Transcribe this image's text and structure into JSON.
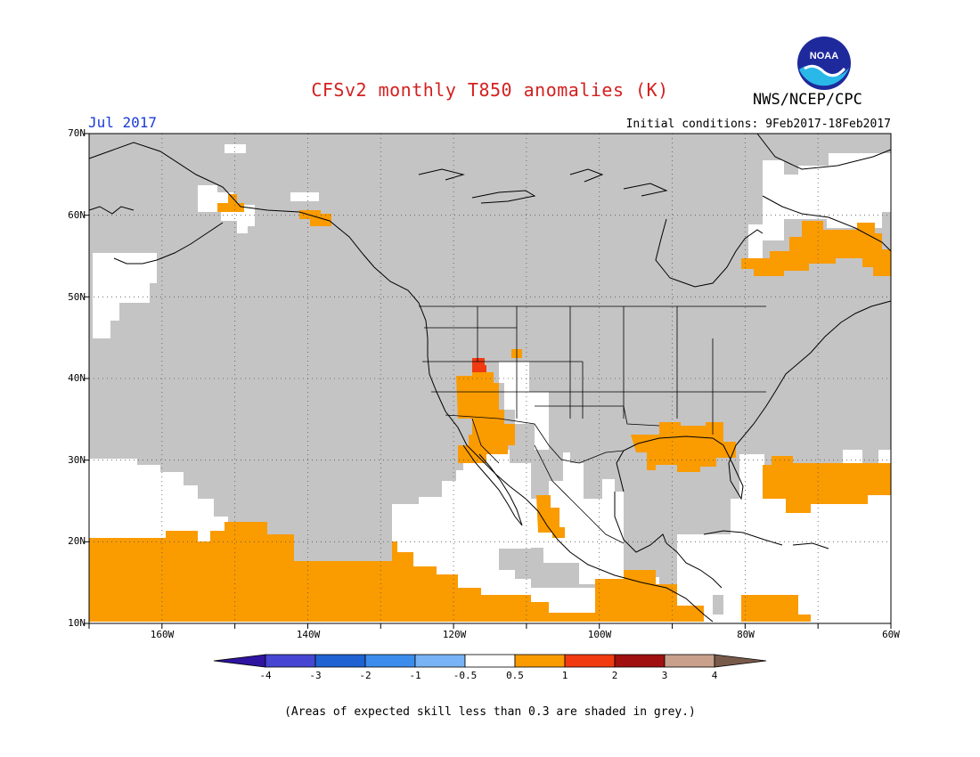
{
  "title": "CFSv2 monthly T850 anomalies (K)",
  "org": "NWS/NCEP/CPC",
  "logo_text": "NOAA",
  "month": "Jul 2017",
  "initial_conditions": "Initial conditions: 9Feb2017-18Feb2017",
  "footnote": "(Areas of expected skill less than 0.3 are shaded in grey.)",
  "colors": {
    "title": "#d42020",
    "month": "#1a3ad8",
    "grey_low_skill": "#c4c4c4",
    "anomaly_0_5_to_1": "#fa9b00",
    "anomaly_1_to_2": "#f13a10",
    "ocean_no_signal": "#ffffff"
  },
  "map": {
    "lon_range": [
      -170,
      -60
    ],
    "lat_range": [
      10,
      70
    ],
    "lat_labels": [
      "70N",
      "60N",
      "50N",
      "40N",
      "30N",
      "20N",
      "10N"
    ],
    "lon_labels": [
      "160W",
      "140W",
      "120W",
      "100W",
      "80W",
      "60W"
    ],
    "grid": "dotted every 10 degrees"
  },
  "colorbar": {
    "labels": [
      "-4",
      "-3",
      "-2",
      "-1",
      "-0.5",
      "0.5",
      "1",
      "2",
      "3",
      "4"
    ],
    "colors": [
      "#2e14a0",
      "#4646d2",
      "#1f63d2",
      "#3c8ceb",
      "#78b4f5",
      "#ffffff",
      "#fa9b00",
      "#f13a10",
      "#a01010",
      "#c8a08c",
      "#785a4a"
    ]
  }
}
